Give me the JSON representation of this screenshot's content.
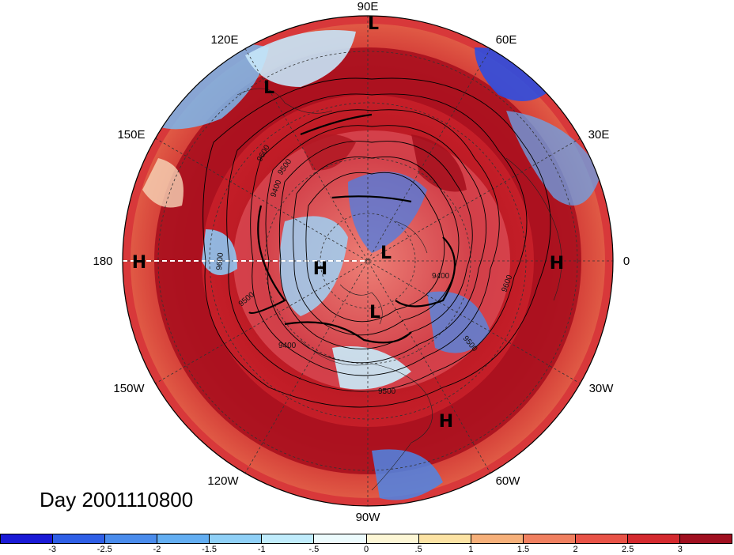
{
  "title_label": "Day 2001110800",
  "longitude_labels": {
    "e90": "90E",
    "e60": "60E",
    "e30": "30E",
    "zero": "0",
    "w30": "30W",
    "w60": "60W",
    "w90": "90W",
    "w120": "120W",
    "w150": "150W",
    "e180": "180",
    "e150": "150E",
    "e120": "120E"
  },
  "pressure_centers": [
    {
      "kind": "L",
      "label": "L"
    },
    {
      "kind": "L",
      "label": "L"
    },
    {
      "kind": "L",
      "label": "L"
    },
    {
      "kind": "L",
      "label": "L"
    },
    {
      "kind": "H",
      "label": "H"
    },
    {
      "kind": "H",
      "label": "H"
    },
    {
      "kind": "H",
      "label": "H"
    },
    {
      "kind": "H",
      "label": "H"
    }
  ],
  "contour_labels": [
    "9600",
    "9500",
    "9400",
    "9600",
    "9500",
    "9400",
    "9500",
    "9400",
    "9500",
    "9600"
  ],
  "colorbar": {
    "colors": [
      "#1a1ad6",
      "#2f5fe6",
      "#4a8cec",
      "#63aef2",
      "#8fd0f7",
      "#c0ecfc",
      "#ecfbfd",
      "#fdf7d6",
      "#fce3a4",
      "#f6b07a",
      "#f08060",
      "#e85347",
      "#d42a2f",
      "#a01020"
    ],
    "labels": [
      "-3",
      "-2.5",
      "-2",
      "-1.5",
      "-1",
      "-.5",
      "0",
      ".5",
      "1",
      "1.5",
      "2",
      "2.5",
      "3"
    ]
  },
  "colors": {
    "anomaly_positive": "#a01020",
    "anomaly_negative": "#1a1ad6"
  }
}
